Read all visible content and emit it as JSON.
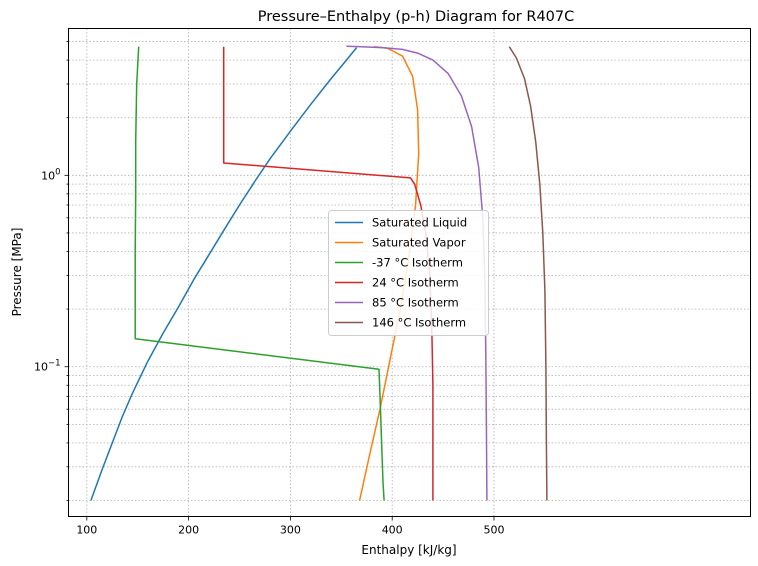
{
  "chart_data": {
    "type": "line",
    "title": "Pressure–Enthalpy (p-h) Diagram for R407C",
    "xlabel": "Enthalpy [kJ/kg]",
    "ylabel": "Pressure [MPa]",
    "xlim": [
      82,
      752
    ],
    "ylim": [
      0.0165,
      5.85
    ],
    "yscale": "log",
    "x_ticks": [
      100,
      200,
      300,
      400,
      500
    ],
    "y_ticks": [
      {
        "value": 0.1,
        "base": "10",
        "exp": "−1"
      },
      {
        "value": 1.0,
        "base": "10",
        "exp": "0"
      }
    ],
    "grid": true,
    "legend": "center",
    "series": [
      {
        "name": "Saturated Liquid",
        "color": "#1f77b4",
        "x": [
          104,
          115,
          125,
          135,
          145,
          160,
          175,
          190,
          205,
          220,
          235,
          250,
          265,
          280,
          300,
          320,
          340,
          355,
          365
        ],
        "y": [
          0.02,
          0.029,
          0.04,
          0.055,
          0.073,
          0.107,
          0.15,
          0.205,
          0.285,
          0.385,
          0.52,
          0.7,
          0.93,
          1.22,
          1.7,
          2.35,
          3.2,
          4.0,
          4.65
        ]
      },
      {
        "name": "Saturated Vapor",
        "color": "#ff7f0e",
        "x": [
          368,
          378,
          388,
          398,
          408,
          416,
          423,
          426,
          425,
          420,
          410,
          395,
          382
        ],
        "y": [
          0.02,
          0.035,
          0.06,
          0.11,
          0.2,
          0.36,
          0.7,
          1.3,
          2.2,
          3.3,
          4.2,
          4.62,
          4.7
        ]
      },
      {
        "name": "-37 °C Isotherm",
        "color": "#2ca02c",
        "x": [
          151,
          149,
          148,
          148,
          147.5,
          147.5,
          147.5,
          387,
          388,
          389,
          390,
          391,
          392
        ],
        "y": [
          4.7,
          3.0,
          1.5,
          0.8,
          0.4,
          0.2,
          0.14,
          0.097,
          0.07,
          0.05,
          0.035,
          0.025,
          0.02
        ]
      },
      {
        "name": "24 °C Isotherm",
        "color": "#d62728",
        "x": [
          234.5,
          234.5,
          234.5,
          234.5,
          234.5,
          418,
          422,
          428,
          433,
          437,
          439,
          440,
          440,
          440
        ],
        "y": [
          4.7,
          3.0,
          2.0,
          1.4,
          1.16,
          0.97,
          0.9,
          0.7,
          0.5,
          0.3,
          0.15,
          0.08,
          0.04,
          0.02
        ]
      },
      {
        "name": "85 °C Isotherm",
        "color": "#9467bd",
        "x": [
          355,
          370,
          390,
          410,
          425,
          440,
          455,
          468,
          478,
          485,
          489,
          491,
          492,
          492.5,
          493
        ],
        "y": [
          4.72,
          4.7,
          4.65,
          4.55,
          4.35,
          4.0,
          3.4,
          2.6,
          1.8,
          1.1,
          0.6,
          0.3,
          0.12,
          0.05,
          0.02
        ]
      },
      {
        "name": "146 °C Isotherm",
        "color": "#8c564b",
        "x": [
          515,
          522,
          530,
          536,
          541,
          545,
          548,
          550,
          551,
          551.5,
          552
        ],
        "y": [
          4.7,
          4.1,
          3.2,
          2.3,
          1.5,
          0.9,
          0.5,
          0.25,
          0.1,
          0.04,
          0.02
        ]
      }
    ]
  }
}
